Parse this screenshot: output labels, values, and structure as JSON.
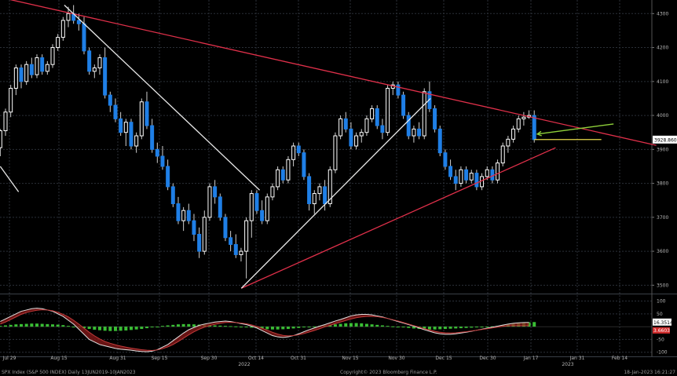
{
  "chart_data": [
    {
      "type": "candlestick",
      "ylim": [
        3480,
        4340
      ],
      "yticks": [
        3500,
        3600,
        3700,
        3800,
        3900,
        4000,
        4100,
        4200,
        4300
      ],
      "last_price_label": "3928.8601",
      "xticks": [
        "Jul 29",
        "Aug 15",
        "Aug 31",
        "Sep 15",
        "Sep 30",
        "Oct 14",
        "Oct 31",
        "Nov 15",
        "Nov 30",
        "Dec 15",
        "Dec 30",
        "Jan 17",
        "Jan 31",
        "Feb 14"
      ],
      "year_labels": [
        "2022",
        "2023"
      ],
      "candles": [
        {
          "o": 3905,
          "h": 3960,
          "l": 3880,
          "c": 3955
        },
        {
          "o": 3955,
          "h": 4020,
          "l": 3940,
          "c": 4010
        },
        {
          "o": 4010,
          "h": 4090,
          "l": 3995,
          "c": 4080
        },
        {
          "o": 4080,
          "h": 4150,
          "l": 4060,
          "c": 4140
        },
        {
          "o": 4140,
          "h": 4150,
          "l": 4080,
          "c": 4100
        },
        {
          "o": 4100,
          "h": 4160,
          "l": 4090,
          "c": 4150
        },
        {
          "o": 4150,
          "h": 4170,
          "l": 4110,
          "c": 4120
        },
        {
          "o": 4120,
          "h": 4180,
          "l": 4110,
          "c": 4170
        },
        {
          "o": 4170,
          "h": 4180,
          "l": 4120,
          "c": 4130
        },
        {
          "o": 4130,
          "h": 4160,
          "l": 4120,
          "c": 4150
        },
        {
          "o": 4150,
          "h": 4210,
          "l": 4140,
          "c": 4200
        },
        {
          "o": 4200,
          "h": 4240,
          "l": 4190,
          "c": 4230
        },
        {
          "o": 4230,
          "h": 4290,
          "l": 4220,
          "c": 4280
        },
        {
          "o": 4280,
          "h": 4320,
          "l": 4260,
          "c": 4300
        },
        {
          "o": 4300,
          "h": 4325,
          "l": 4270,
          "c": 4280
        },
        {
          "o": 4280,
          "h": 4300,
          "l": 4250,
          "c": 4270
        },
        {
          "o": 4270,
          "h": 4290,
          "l": 4180,
          "c": 4190
        },
        {
          "o": 4190,
          "h": 4200,
          "l": 4120,
          "c": 4130
        },
        {
          "o": 4130,
          "h": 4150,
          "l": 4110,
          "c": 4140
        },
        {
          "o": 4140,
          "h": 4180,
          "l": 4120,
          "c": 4170
        },
        {
          "o": 4170,
          "h": 4200,
          "l": 4050,
          "c": 4060
        },
        {
          "o": 4060,
          "h": 4070,
          "l": 4010,
          "c": 4030
        },
        {
          "o": 4030,
          "h": 4050,
          "l": 3980,
          "c": 3990
        },
        {
          "o": 3990,
          "h": 4010,
          "l": 3940,
          "c": 3950
        },
        {
          "o": 3950,
          "h": 3990,
          "l": 3910,
          "c": 3980
        },
        {
          "o": 3980,
          "h": 3990,
          "l": 3900,
          "c": 3910
        },
        {
          "o": 3910,
          "h": 3950,
          "l": 3890,
          "c": 3940
        },
        {
          "o": 3940,
          "h": 4050,
          "l": 3930,
          "c": 4040
        },
        {
          "o": 4040,
          "h": 4070,
          "l": 3960,
          "c": 3970
        },
        {
          "o": 3970,
          "h": 3990,
          "l": 3890,
          "c": 3900
        },
        {
          "o": 3900,
          "h": 3920,
          "l": 3860,
          "c": 3880
        },
        {
          "o": 3880,
          "h": 3910,
          "l": 3840,
          "c": 3850
        },
        {
          "o": 3850,
          "h": 3870,
          "l": 3780,
          "c": 3790
        },
        {
          "o": 3790,
          "h": 3800,
          "l": 3730,
          "c": 3740
        },
        {
          "o": 3740,
          "h": 3760,
          "l": 3680,
          "c": 3690
        },
        {
          "o": 3690,
          "h": 3730,
          "l": 3660,
          "c": 3720
        },
        {
          "o": 3720,
          "h": 3740,
          "l": 3680,
          "c": 3690
        },
        {
          "o": 3690,
          "h": 3710,
          "l": 3630,
          "c": 3650
        },
        {
          "o": 3650,
          "h": 3670,
          "l": 3580,
          "c": 3600
        },
        {
          "o": 3600,
          "h": 3720,
          "l": 3590,
          "c": 3700
        },
        {
          "o": 3700,
          "h": 3800,
          "l": 3690,
          "c": 3790
        },
        {
          "o": 3790,
          "h": 3810,
          "l": 3740,
          "c": 3760
        },
        {
          "o": 3760,
          "h": 3770,
          "l": 3690,
          "c": 3700
        },
        {
          "o": 3700,
          "h": 3710,
          "l": 3630,
          "c": 3640
        },
        {
          "o": 3640,
          "h": 3660,
          "l": 3600,
          "c": 3620
        },
        {
          "o": 3620,
          "h": 3650,
          "l": 3580,
          "c": 3590
        },
        {
          "o": 3590,
          "h": 3610,
          "l": 3570,
          "c": 3600
        },
        {
          "o": 3600,
          "h": 3700,
          "l": 3520,
          "c": 3690
        },
        {
          "o": 3690,
          "h": 3780,
          "l": 3640,
          "c": 3770
        },
        {
          "o": 3770,
          "h": 3780,
          "l": 3710,
          "c": 3720
        },
        {
          "o": 3720,
          "h": 3750,
          "l": 3680,
          "c": 3690
        },
        {
          "o": 3690,
          "h": 3770,
          "l": 3680,
          "c": 3760
        },
        {
          "o": 3760,
          "h": 3800,
          "l": 3750,
          "c": 3790
        },
        {
          "o": 3790,
          "h": 3850,
          "l": 3780,
          "c": 3840
        },
        {
          "o": 3840,
          "h": 3850,
          "l": 3800,
          "c": 3810
        },
        {
          "o": 3810,
          "h": 3880,
          "l": 3800,
          "c": 3870
        },
        {
          "o": 3870,
          "h": 3920,
          "l": 3850,
          "c": 3910
        },
        {
          "o": 3910,
          "h": 3920,
          "l": 3880,
          "c": 3890
        },
        {
          "o": 3890,
          "h": 3900,
          "l": 3810,
          "c": 3820
        },
        {
          "o": 3820,
          "h": 3830,
          "l": 3720,
          "c": 3740
        },
        {
          "o": 3740,
          "h": 3780,
          "l": 3710,
          "c": 3770
        },
        {
          "o": 3770,
          "h": 3800,
          "l": 3750,
          "c": 3790
        },
        {
          "o": 3790,
          "h": 3810,
          "l": 3720,
          "c": 3740
        },
        {
          "o": 3740,
          "h": 3850,
          "l": 3730,
          "c": 3840
        },
        {
          "o": 3840,
          "h": 3950,
          "l": 3830,
          "c": 3940
        },
        {
          "o": 3940,
          "h": 4000,
          "l": 3930,
          "c": 3990
        },
        {
          "o": 3990,
          "h": 4010,
          "l": 3950,
          "c": 3960
        },
        {
          "o": 3960,
          "h": 3980,
          "l": 3900,
          "c": 3910
        },
        {
          "o": 3910,
          "h": 3950,
          "l": 3900,
          "c": 3940
        },
        {
          "o": 3940,
          "h": 3960,
          "l": 3920,
          "c": 3950
        },
        {
          "o": 3950,
          "h": 4000,
          "l": 3940,
          "c": 3990
        },
        {
          "o": 3990,
          "h": 4030,
          "l": 3980,
          "c": 4020
        },
        {
          "o": 4020,
          "h": 4030,
          "l": 3960,
          "c": 3970
        },
        {
          "o": 3970,
          "h": 3990,
          "l": 3930,
          "c": 3950
        },
        {
          "o": 3950,
          "h": 4090,
          "l": 3940,
          "c": 4080
        },
        {
          "o": 4080,
          "h": 4100,
          "l": 4060,
          "c": 4090
        },
        {
          "o": 4090,
          "h": 4100,
          "l": 4050,
          "c": 4060
        },
        {
          "o": 4060,
          "h": 4070,
          "l": 3990,
          "c": 4000
        },
        {
          "o": 4000,
          "h": 4010,
          "l": 3930,
          "c": 3940
        },
        {
          "o": 3940,
          "h": 3970,
          "l": 3920,
          "c": 3960
        },
        {
          "o": 3960,
          "h": 3980,
          "l": 3930,
          "c": 3940
        },
        {
          "o": 3940,
          "h": 4080,
          "l": 3930,
          "c": 4070
        },
        {
          "o": 4070,
          "h": 4100,
          "l": 4010,
          "c": 4020
        },
        {
          "o": 4020,
          "h": 4030,
          "l": 3950,
          "c": 3960
        },
        {
          "o": 3960,
          "h": 3970,
          "l": 3880,
          "c": 3890
        },
        {
          "o": 3890,
          "h": 3900,
          "l": 3840,
          "c": 3850
        },
        {
          "o": 3850,
          "h": 3870,
          "l": 3810,
          "c": 3820
        },
        {
          "o": 3820,
          "h": 3840,
          "l": 3780,
          "c": 3800
        },
        {
          "o": 3800,
          "h": 3850,
          "l": 3790,
          "c": 3840
        },
        {
          "o": 3840,
          "h": 3850,
          "l": 3800,
          "c": 3810
        },
        {
          "o": 3810,
          "h": 3840,
          "l": 3800,
          "c": 3830
        },
        {
          "o": 3830,
          "h": 3840,
          "l": 3780,
          "c": 3790
        },
        {
          "o": 3790,
          "h": 3830,
          "l": 3780,
          "c": 3820
        },
        {
          "o": 3820,
          "h": 3850,
          "l": 3810,
          "c": 3840
        },
        {
          "o": 3840,
          "h": 3850,
          "l": 3800,
          "c": 3810
        },
        {
          "o": 3810,
          "h": 3870,
          "l": 3800,
          "c": 3860
        },
        {
          "o": 3860,
          "h": 3920,
          "l": 3850,
          "c": 3910
        },
        {
          "o": 3910,
          "h": 3940,
          "l": 3890,
          "c": 3930
        },
        {
          "o": 3930,
          "h": 3970,
          "l": 3920,
          "c": 3960
        },
        {
          "o": 3960,
          "h": 4000,
          "l": 3950,
          "c": 3990
        },
        {
          "o": 3990,
          "h": 4010,
          "l": 3970,
          "c": 3995
        },
        {
          "o": 3995,
          "h": 4015,
          "l": 3990,
          "c": 4000
        },
        {
          "o": 4000,
          "h": 4015,
          "l": 3920,
          "c": 3928.86
        }
      ],
      "trendlines": [
        {
          "color": "#e0304a",
          "from": [
            "Jul 15",
            4370
          ],
          "to": [
            "Feb 26",
            3912
          ]
        },
        {
          "color": "#e0304a",
          "from": [
            "Oct 13",
            3491
          ],
          "to": [
            "Jan 24",
            3905
          ]
        },
        {
          "color": "#e8e8e8",
          "from": [
            "Aug 16",
            4325
          ],
          "to": [
            "Oct 19",
            3780
          ]
        },
        {
          "color": "#e8e8e8",
          "from": [
            "Jul 26",
            3850
          ],
          "to": [
            "Aug 1",
            3775
          ]
        },
        {
          "color": "#e8e8e8",
          "from": [
            "Oct 13",
            3491
          ],
          "to": [
            "Dec 14",
            4050
          ]
        },
        {
          "color": "#e8d84a",
          "from": [
            "Jan 17",
            3929
          ],
          "to": [
            "Feb 8",
            3929
          ]
        }
      ],
      "arrow": {
        "color": "#8fd13a",
        "from": [
          "Feb 12",
          3975
        ],
        "to": [
          "Jan 18",
          3945
        ]
      }
    },
    {
      "type": "macd-histogram",
      "ylim": [
        -110,
        120
      ],
      "yticks": [
        100,
        50,
        -50,
        -100
      ],
      "value_labels": [
        "16.3514",
        "3.6603"
      ],
      "histogram": [
        3,
        5,
        7,
        9,
        10,
        11,
        12,
        12,
        11,
        10,
        9,
        8,
        6,
        3,
        0,
        -3,
        -6,
        -9,
        -12,
        -14,
        -16,
        -17,
        -17,
        -16,
        -15,
        -13,
        -11,
        -9,
        -6,
        -3,
        0,
        3,
        5,
        7,
        9,
        10,
        10,
        9,
        8,
        7,
        6,
        5,
        4,
        3,
        2,
        1,
        0,
        -2,
        -4,
        -6,
        -8,
        -10,
        -11,
        -11,
        -10,
        -9,
        -7,
        -5,
        -3,
        -1,
        1,
        3,
        5,
        7,
        9,
        11,
        13,
        14,
        14,
        13,
        11,
        9,
        7,
        5,
        3,
        1,
        -1,
        -3,
        -5,
        -7,
        -9,
        -10,
        -11,
        -11,
        -10,
        -9,
        -8,
        -7,
        -6,
        -5,
        -4,
        -3,
        -2,
        -1,
        1,
        3,
        6,
        9,
        12,
        14,
        16,
        17,
        18
      ],
      "macd": [
        20,
        30,
        40,
        50,
        60,
        65,
        70,
        72,
        70,
        65,
        60,
        50,
        40,
        25,
        10,
        -10,
        -30,
        -50,
        -60,
        -70,
        -75,
        -80,
        -85,
        -88,
        -90,
        -92,
        -95,
        -97,
        -98,
        -96,
        -90,
        -80,
        -70,
        -55,
        -40,
        -25,
        -12,
        -3,
        5,
        10,
        14,
        18,
        20,
        22,
        20,
        16,
        12,
        8,
        2,
        -5,
        -15,
        -25,
        -35,
        -40,
        -42,
        -40,
        -35,
        -28,
        -20,
        -12,
        -5,
        2,
        8,
        15,
        22,
        28,
        35,
        42,
        46,
        48,
        48,
        46,
        42,
        38,
        32,
        26,
        20,
        14,
        8,
        2,
        -5,
        -12,
        -18,
        -24,
        -28,
        -30,
        -30,
        -28,
        -25,
        -22,
        -18,
        -14,
        -10,
        -6,
        -2,
        2,
        6,
        10,
        13,
        15,
        16,
        16.35
      ],
      "signal": [
        10,
        18,
        28,
        38,
        48,
        55,
        60,
        64,
        66,
        65,
        62,
        56,
        48,
        38,
        25,
        10,
        -6,
        -22,
        -36,
        -48,
        -58,
        -65,
        -71,
        -76,
        -80,
        -84,
        -87,
        -90,
        -92,
        -93,
        -91,
        -86,
        -79,
        -70,
        -58,
        -45,
        -32,
        -20,
        -10,
        -2,
        4,
        9,
        13,
        16,
        17,
        16,
        14,
        11,
        7,
        1,
        -6,
        -14,
        -22,
        -29,
        -34,
        -36,
        -35,
        -32,
        -27,
        -21,
        -15,
        -8,
        -1,
        5,
        12,
        18,
        24,
        30,
        35,
        38,
        40,
        40,
        39,
        36,
        32,
        27,
        22,
        16,
        10,
        4,
        -2,
        -8,
        -13,
        -18,
        -22,
        -24,
        -25,
        -24,
        -22,
        -20,
        -17,
        -14,
        -11,
        -8,
        -5,
        -2,
        1,
        3,
        3.3,
        3.5,
        3.6,
        3.66
      ]
    }
  ],
  "footer": {
    "left": "SPX Index (S&P 500 INDEX) Daily 13JUN2019-10JAN2023",
    "center": "Copyright© 2023 Bloomberg Finance L.P.",
    "right": "18-Jan-2023 16:21:27"
  },
  "colors": {
    "up": "#ffffff",
    "down": "#1f7fe6",
    "grid": "#2b3038",
    "trend_red": "#e0304a",
    "trend_white": "#e8e8e8",
    "hist_pos": "#3fd13a",
    "hist_neg": "#3fd13a",
    "macd": "#a01818",
    "signal": "#d0d0d0"
  }
}
